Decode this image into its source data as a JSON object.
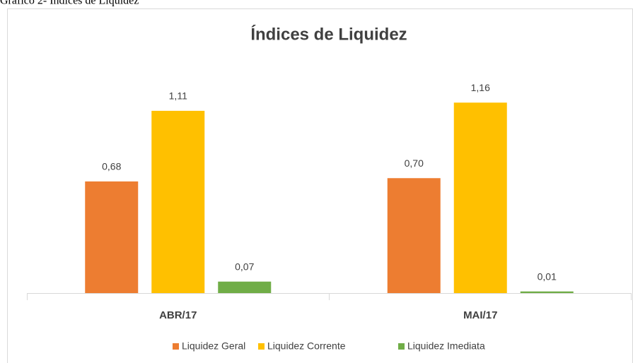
{
  "caption": "Gráfico 2- Índices de Liquidez",
  "chart_data": {
    "type": "bar",
    "title": "Índices de Liquidez",
    "categories": [
      "ABR/17",
      "MAI/17"
    ],
    "series": [
      {
        "name": "Liquidez Geral",
        "color": "#ED7D31",
        "values": [
          0.68,
          0.7
        ],
        "value_labels": [
          "0,68",
          "0,70"
        ]
      },
      {
        "name": "Liquidez Corrente",
        "color": "#FFC000",
        "values": [
          1.11,
          1.16
        ],
        "value_labels": [
          "1,11",
          "1,16"
        ]
      },
      {
        "name": "Liquidez Imediata",
        "color": "#70AD47",
        "values": [
          0.07,
          0.01
        ],
        "value_labels": [
          "0,07",
          "0,01"
        ]
      }
    ],
    "legend": "bottom"
  }
}
